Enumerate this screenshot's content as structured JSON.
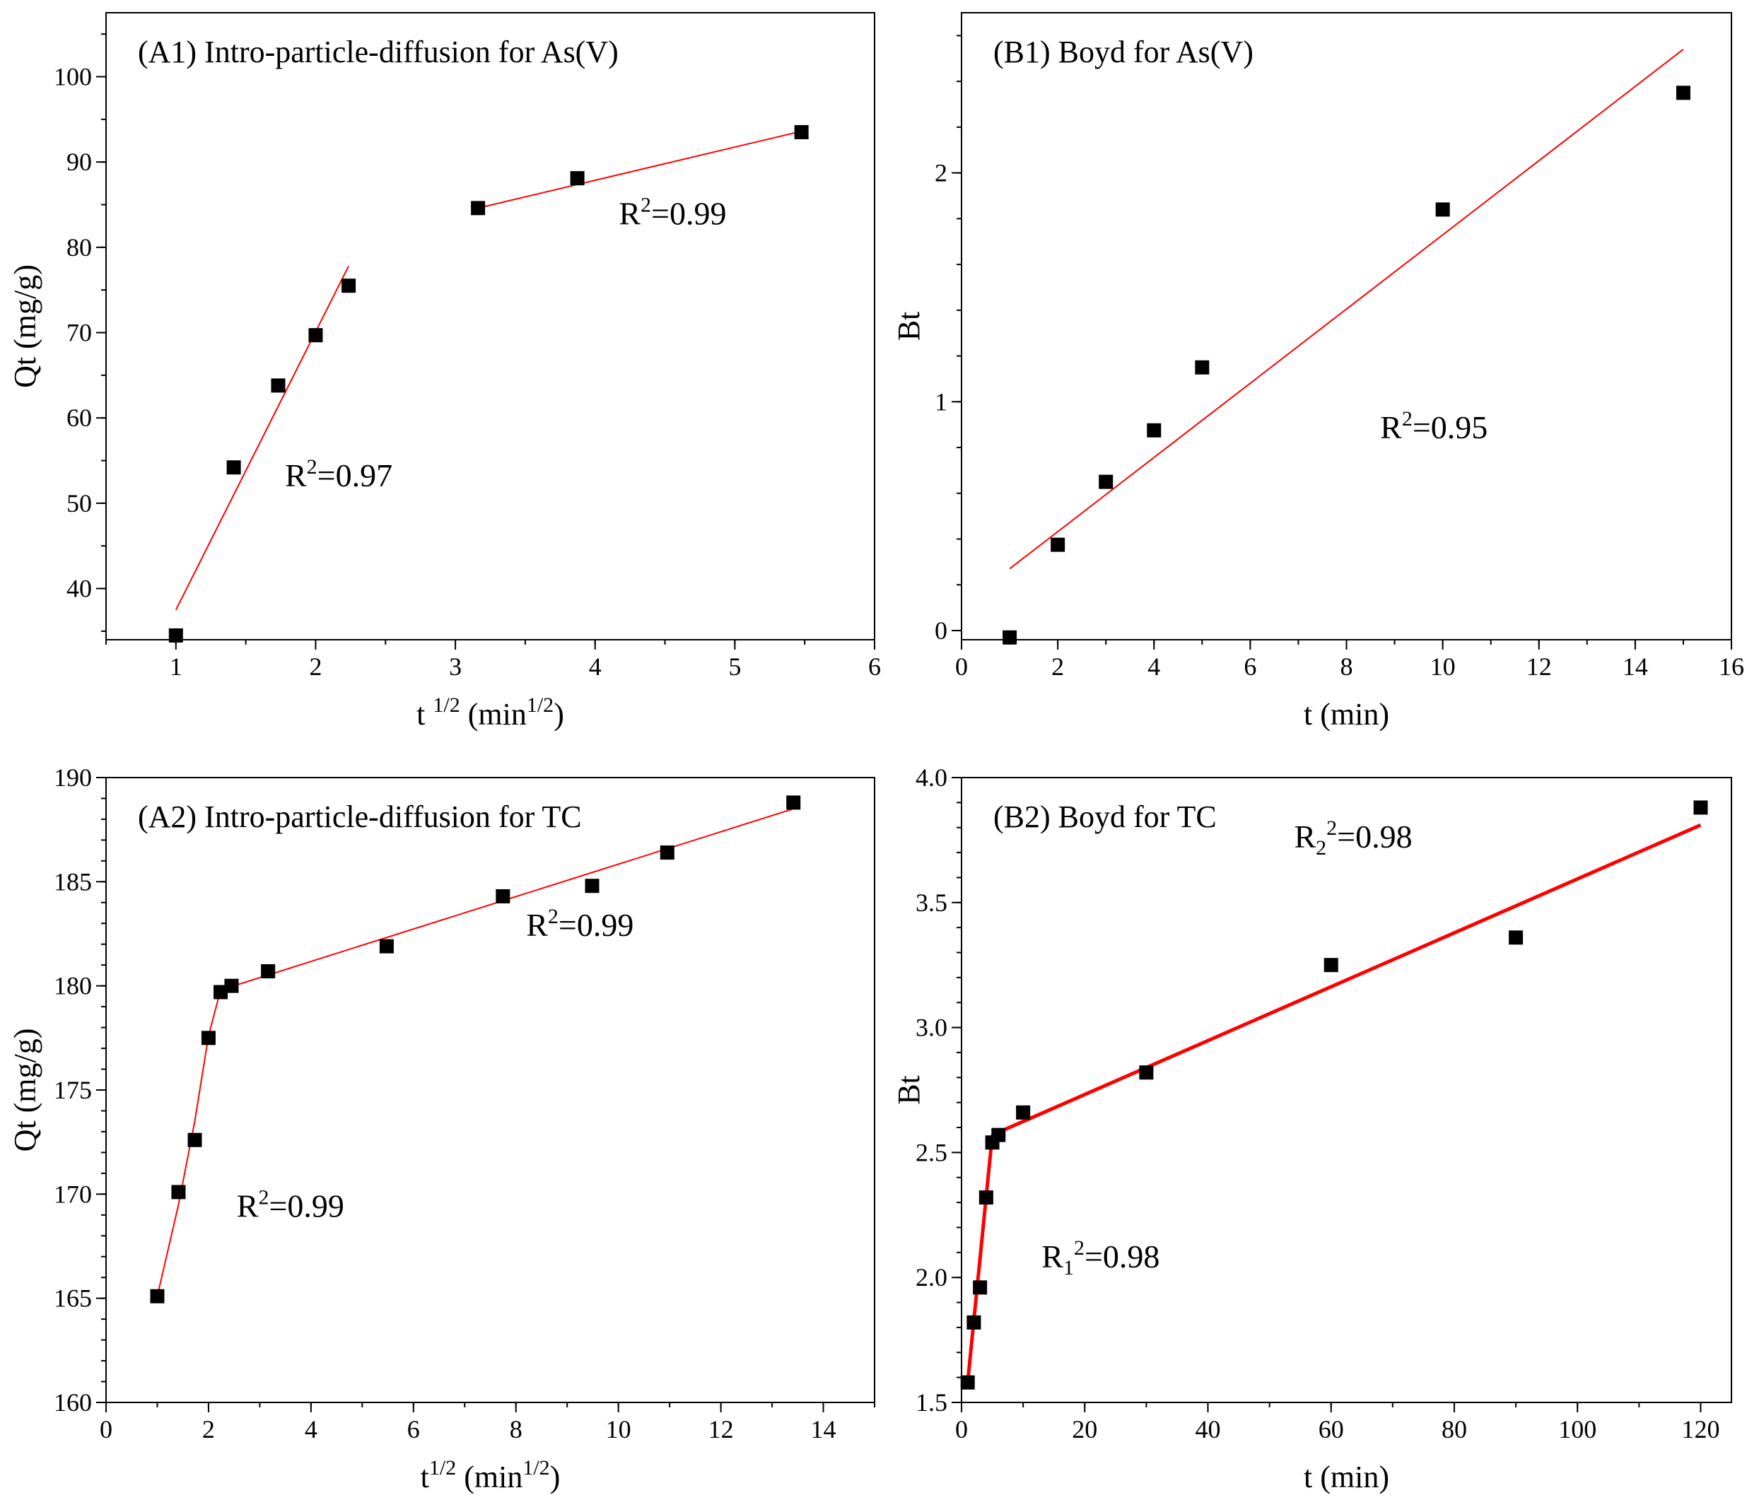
{
  "chart_data": [
    {
      "id": "A1",
      "type": "scatter",
      "title": "(A1) Intro-particle-diffusion for As(V)",
      "xlabel": "t ",
      "xlabel_sup": "1/2",
      "xlabel_unit": " (min",
      "xlabel_unit_sup": "1/2",
      "xlabel_close": ")",
      "ylabel": "Qt (mg/g)",
      "xlim": [
        0.5,
        6
      ],
      "ylim": [
        34,
        107.5
      ],
      "xticks": [
        1,
        2,
        3,
        4,
        5,
        6
      ],
      "yticks": [
        40,
        50,
        60,
        70,
        80,
        90,
        100
      ],
      "x_minor": 0.5,
      "y_minor": 5,
      "series": [
        {
          "name": "As(V)",
          "x": [
            1.0,
            1.414,
            1.732,
            2.0,
            2.236,
            3.162,
            3.873,
            5.477
          ],
          "y": [
            34.5,
            54.2,
            63.8,
            69.7,
            75.5,
            84.6,
            88.1,
            93.5
          ]
        }
      ],
      "fits": [
        {
          "x": [
            1.0,
            2.236
          ],
          "y": [
            37.5,
            77.8
          ],
          "width": 2
        },
        {
          "x": [
            3.162,
            5.477
          ],
          "y": [
            84.6,
            93.6
          ],
          "width": 2
        }
      ],
      "annotations": [
        {
          "base": "R",
          "sup": "2",
          "text": "=0.97",
          "x": 1.78,
          "y": 52
        },
        {
          "base": "R",
          "sup": "2",
          "text": "=0.99",
          "x": 4.17,
          "y": 82.7
        }
      ]
    },
    {
      "id": "B1",
      "type": "scatter",
      "title": "(B1)  Boyd for As(V)",
      "xlabel": "t (min)",
      "ylabel": "Bt",
      "xlim": [
        0,
        16
      ],
      "ylim": [
        -0.04,
        2.7
      ],
      "xticks": [
        0,
        2,
        4,
        6,
        8,
        10,
        12,
        14,
        16
      ],
      "yticks": [
        0,
        1,
        2
      ],
      "x_minor": 1,
      "y_minor": 0.2,
      "series": [
        {
          "name": "As(V)",
          "x": [
            1,
            2,
            3,
            4,
            5,
            10,
            15
          ],
          "y": [
            -0.03,
            0.375,
            0.65,
            0.875,
            1.15,
            1.84,
            2.35
          ]
        }
      ],
      "fits": [
        {
          "x": [
            1,
            15
          ],
          "y": [
            0.27,
            2.54
          ],
          "width": 2
        }
      ],
      "annotations": [
        {
          "base": "R",
          "sup": "2",
          "text": "=0.95",
          "x": 8.7,
          "y": 0.84
        }
      ]
    },
    {
      "id": "A2",
      "type": "scatter",
      "title": "(A2)   Intro-particle-diffusion for TC",
      "xlabel": "t",
      "xlabel_sup": "1/2",
      "xlabel_unit": " (min",
      "xlabel_unit_sup": "1/2",
      "xlabel_close": ")",
      "ylabel": "Qt (mg/g)",
      "xlim": [
        0,
        15
      ],
      "ylim": [
        160,
        190
      ],
      "xticks": [
        0,
        2,
        4,
        6,
        8,
        10,
        12,
        14
      ],
      "yticks": [
        160,
        165,
        170,
        175,
        180,
        185,
        190
      ],
      "x_minor": 1,
      "y_minor": 1,
      "series": [
        {
          "name": "TC",
          "x": [
            1.0,
            1.414,
            1.732,
            2.0,
            2.236,
            2.449,
            3.162,
            5.477,
            7.746,
            9.487,
            10.954,
            13.416
          ],
          "y": [
            165.1,
            170.1,
            172.6,
            177.5,
            179.7,
            180.0,
            180.7,
            181.9,
            184.3,
            184.8,
            186.4,
            188.8
          ]
        }
      ],
      "fits": [
        {
          "x": [
            1.0,
            1.414,
            1.732,
            2.0,
            2.236
          ],
          "y": [
            165.1,
            169.5,
            173.5,
            177.6,
            179.8
          ],
          "width": 2
        },
        {
          "x": [
            2.236,
            13.416
          ],
          "y": [
            179.8,
            188.5
          ],
          "width": 2
        }
      ],
      "annotations": [
        {
          "base": "R",
          "sup": "2",
          "text": "=0.99",
          "x": 2.55,
          "y": 168.9
        },
        {
          "base": "R",
          "sup": "2",
          "text": "=0.99",
          "x": 8.2,
          "y": 182.4
        }
      ]
    },
    {
      "id": "B2",
      "type": "scatter",
      "title": "(B2)  Boyd for TC",
      "xlabel": "t (min)",
      "ylabel": "Bt",
      "xlim": [
        0,
        125
      ],
      "ylim": [
        1.5,
        4.0
      ],
      "xticks": [
        0,
        20,
        40,
        60,
        80,
        100,
        120
      ],
      "yticks": [
        1.5,
        2.0,
        2.5,
        3.0,
        3.5,
        4.0
      ],
      "ytick_decimals": 1,
      "x_minor": 10,
      "y_minor": 0.1,
      "series": [
        {
          "name": "TC",
          "x": [
            1,
            2,
            3,
            4,
            5,
            6,
            10,
            30,
            60,
            90,
            120
          ],
          "y": [
            1.58,
            1.82,
            1.96,
            2.32,
            2.54,
            2.57,
            2.66,
            2.82,
            3.25,
            3.36,
            3.88
          ]
        }
      ],
      "fits": [
        {
          "x": [
            1,
            5
          ],
          "y": [
            1.58,
            2.57
          ],
          "width": 5
        },
        {
          "x": [
            5,
            120
          ],
          "y": [
            2.57,
            3.81
          ],
          "width": 5
        }
      ],
      "annotations": [
        {
          "base": "R",
          "sub": "1",
          "sup": "2",
          "text": "=0.98",
          "x": 13,
          "y": 2.04
        },
        {
          "base": "R",
          "sub": "2",
          "sup": "2",
          "text": "=0.98",
          "x": 54,
          "y": 3.72
        }
      ]
    }
  ],
  "colors": {
    "fit_line": "#ff0000",
    "marker": "#000000",
    "axis": "#000000"
  }
}
